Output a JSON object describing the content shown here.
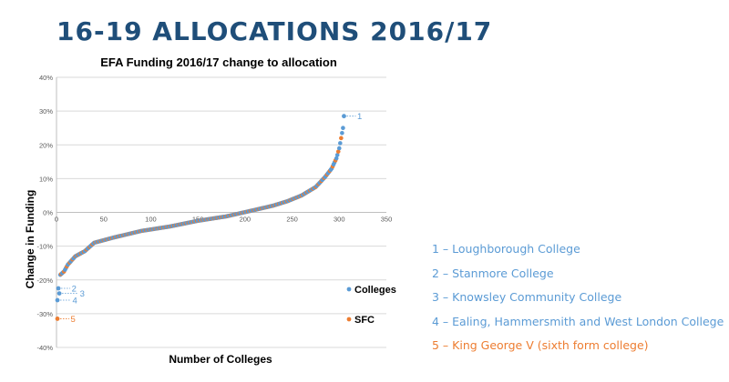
{
  "slide_title": "16-19 ALLOCATIONS 2016/17",
  "colors": {
    "title": "#1f4e79",
    "colleges": "#5b9bd5",
    "sfc": "#ed7d31",
    "grid": "#d9d9d9",
    "axis": "#bfbfbf"
  },
  "chart_data": {
    "type": "scatter",
    "title": "EFA Funding 2016/17 change to allocation",
    "xlabel": "Number of Colleges",
    "ylabel": "Change in Funding",
    "xlim": [
      0,
      350
    ],
    "ylim": [
      -40,
      40
    ],
    "x_ticks": [
      0,
      50,
      100,
      150,
      200,
      250,
      300,
      350
    ],
    "y_ticks": [
      -40,
      -30,
      -20,
      -10,
      0,
      10,
      20,
      30,
      40
    ],
    "y_tick_labels": [
      "-40%",
      "-30%",
      "-20%",
      "-10%",
      "0%",
      "10%",
      "20%",
      "30%",
      "40%"
    ],
    "grid": true,
    "legend": "right",
    "series_keypoints": [
      [
        1,
        -26
      ],
      [
        2,
        -24
      ],
      [
        3,
        -22.5
      ],
      [
        4,
        -18.5
      ],
      [
        8,
        -17.5
      ],
      [
        12,
        -15.5
      ],
      [
        20,
        -13
      ],
      [
        30,
        -11.5
      ],
      [
        40,
        -9
      ],
      [
        60,
        -7.5
      ],
      [
        90,
        -5.5
      ],
      [
        120,
        -4.2
      ],
      [
        150,
        -2.5
      ],
      [
        180,
        -1.2
      ],
      [
        210,
        0.7
      ],
      [
        230,
        2
      ],
      [
        245,
        3.3
      ],
      [
        260,
        5
      ],
      [
        275,
        7.5
      ],
      [
        285,
        10.5
      ],
      [
        292,
        13
      ],
      [
        297,
        16
      ],
      [
        300,
        19
      ],
      [
        302,
        22
      ],
      [
        304,
        25
      ],
      [
        305,
        27
      ],
      [
        306,
        28.5
      ]
    ],
    "series": [
      {
        "name": "Colleges",
        "outliers": [
          [
            305,
            28.5
          ],
          [
            2,
            -22.5
          ],
          [
            3,
            -24
          ],
          [
            1,
            -26
          ]
        ]
      },
      {
        "name": "SFC",
        "outliers": [
          [
            1,
            -31.5
          ]
        ]
      }
    ],
    "annotations": [
      {
        "label": "1",
        "x": 305,
        "y": 28.5,
        "series": "Colleges"
      },
      {
        "label": "2",
        "x": 2,
        "y": -22.5,
        "series": "Colleges"
      },
      {
        "label": "3",
        "x": 3,
        "y": -24,
        "series": "Colleges"
      },
      {
        "label": "4",
        "x": 1,
        "y": -26,
        "series": "Colleges"
      },
      {
        "label": "5",
        "x": 1,
        "y": -31.5,
        "series": "SFC"
      }
    ]
  },
  "notes": [
    {
      "text": "1 – Loughborough College",
      "series": "Colleges"
    },
    {
      "text": "2 – Stanmore College",
      "series": "Colleges"
    },
    {
      "text": "3 – Knowsley Community College",
      "series": "Colleges"
    },
    {
      "text": "4 – Ealing, Hammersmith and West London College",
      "series": "Colleges"
    },
    {
      "text": "5 – King George V (sixth form college)",
      "series": "SFC"
    }
  ]
}
